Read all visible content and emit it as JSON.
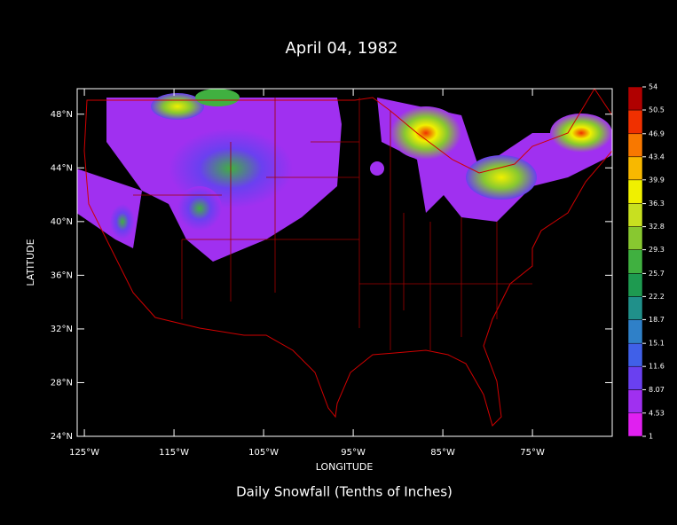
{
  "chart_data": {
    "type": "map",
    "title": "April 04, 1982",
    "subtitle": "Daily Snowfall (Tenths of Inches)",
    "x_label": "LONGITUDE",
    "y_label": "LATITUDE",
    "xlim": [
      -125.8,
      -66.1
    ],
    "ylim": [
      24,
      49.9
    ],
    "xticks": [
      {
        "value": -125,
        "label": "125°W"
      },
      {
        "value": -115,
        "label": "115°W"
      },
      {
        "value": -105,
        "label": "105°W"
      },
      {
        "value": -95,
        "label": "95°W"
      },
      {
        "value": -85,
        "label": "85°W"
      },
      {
        "value": -75,
        "label": "75°W"
      }
    ],
    "yticks": [
      {
        "value": 24,
        "label": "24°N"
      },
      {
        "value": 28,
        "label": "28°N"
      },
      {
        "value": 32,
        "label": "32°N"
      },
      {
        "value": 36,
        "label": "36°N"
      },
      {
        "value": 40,
        "label": "40°N"
      },
      {
        "value": 44,
        "label": "44°N"
      },
      {
        "value": 48,
        "label": "48°N"
      }
    ],
    "colorbar": {
      "levels": [
        1,
        4.53,
        8.07,
        11.6,
        15.1,
        18.7,
        22.2,
        25.7,
        29.3,
        32.8,
        36.3,
        39.9,
        43.4,
        46.9,
        50.5,
        54
      ],
      "colors": [
        "#e020f0",
        "#a030f0",
        "#6a40f0",
        "#4060e8",
        "#2f80c8",
        "#20908a",
        "#1e9a50",
        "#40b040",
        "#88c830",
        "#c8e020",
        "#f0f000",
        "#f8b800",
        "#f87800",
        "#f03000",
        "#b00000"
      ]
    }
  }
}
